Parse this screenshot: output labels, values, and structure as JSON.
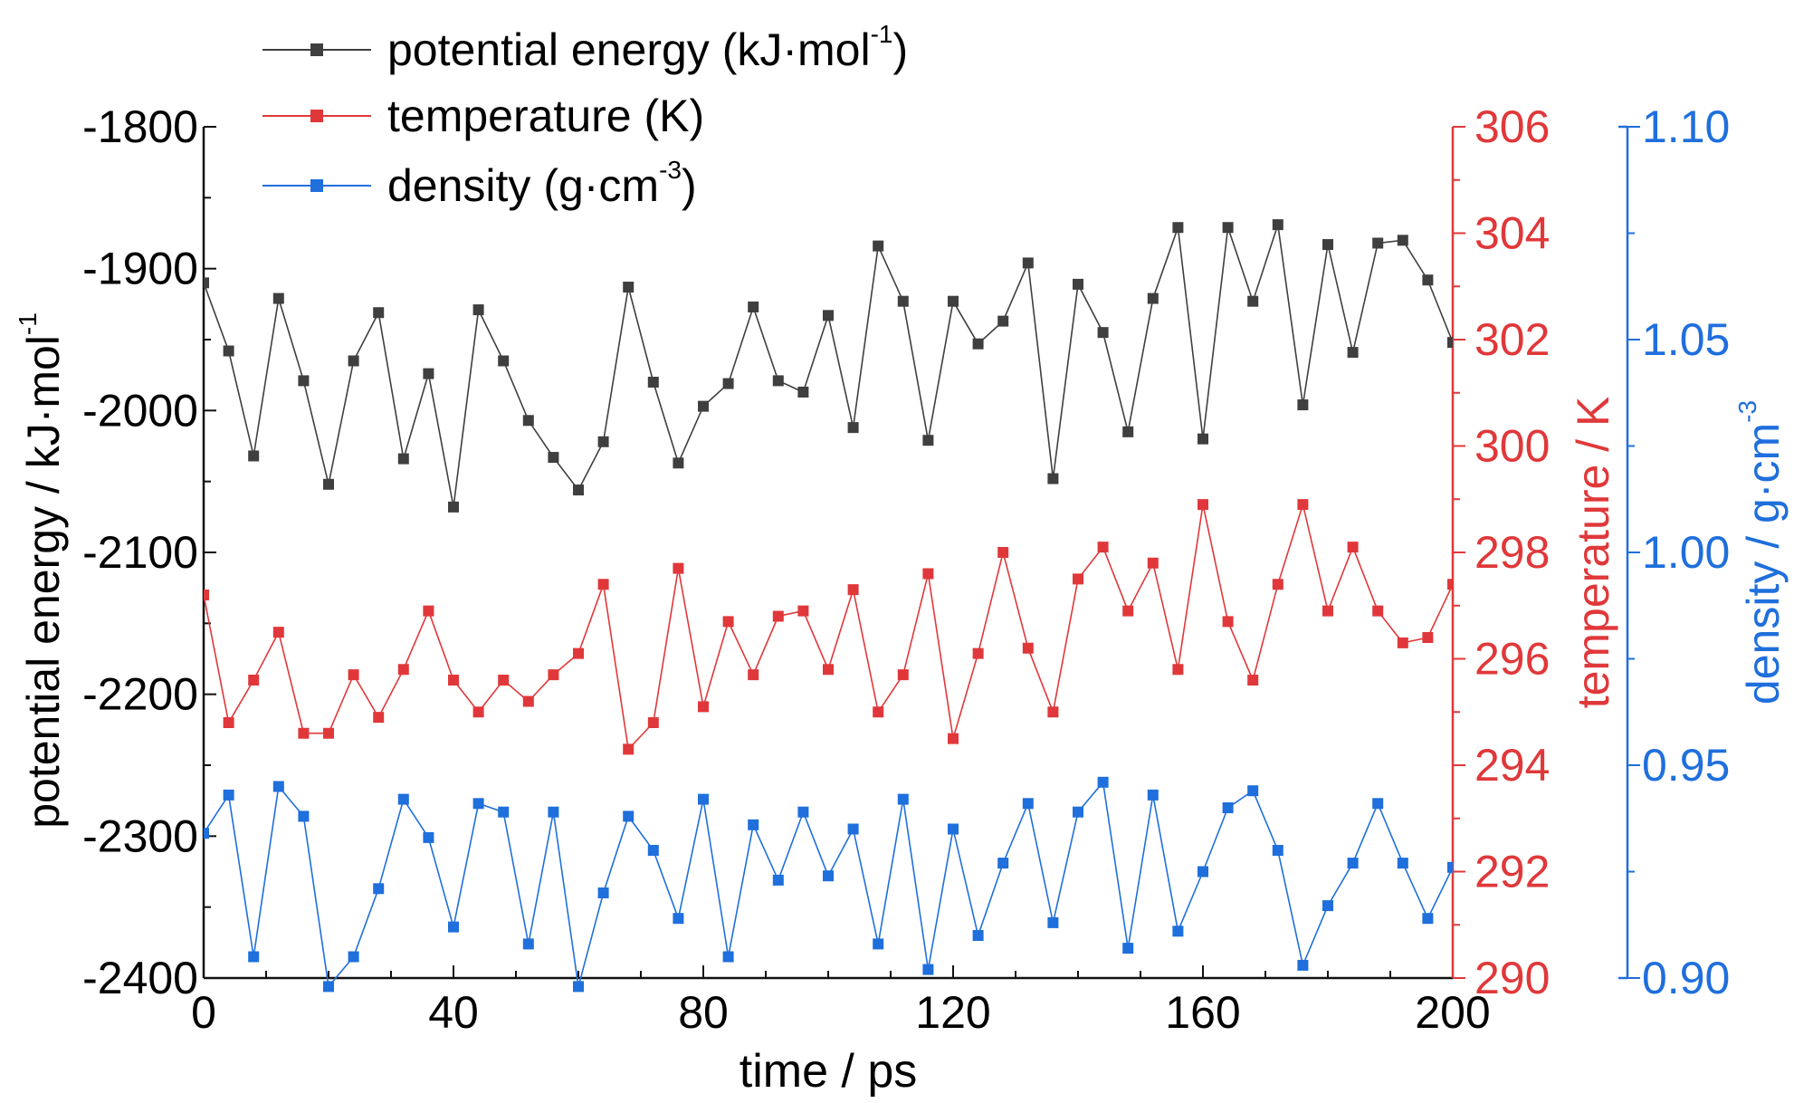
{
  "chart_data": {
    "type": "line",
    "xlabel": "time / ps",
    "xlim": [
      0,
      200
    ],
    "xticks": [
      0,
      40,
      80,
      120,
      160,
      200
    ],
    "x": [
      0,
      4,
      8,
      12,
      16,
      20,
      24,
      28,
      32,
      36,
      40,
      44,
      48,
      52,
      56,
      60,
      64,
      68,
      72,
      76,
      80,
      84,
      88,
      92,
      96,
      100,
      104,
      108,
      112,
      116,
      120,
      124,
      128,
      132,
      136,
      140,
      144,
      148,
      152,
      156,
      160,
      164,
      168,
      172,
      176,
      180,
      184,
      188,
      192,
      196,
      200
    ],
    "axes": {
      "left": {
        "label": "potential energy / kJ·mol",
        "label_sup": "-1",
        "ylim": [
          -2400,
          -1800
        ],
        "ticks": [
          "-1800",
          "-1900",
          "-2000",
          "-2100",
          "-2200",
          "-2300",
          "-2400"
        ],
        "color": "#000000"
      },
      "right1": {
        "label": "temperature / K",
        "ylim": [
          290,
          306
        ],
        "ticks": [
          "306",
          "304",
          "302",
          "300",
          "298",
          "296",
          "294",
          "292",
          "290"
        ],
        "color": "#e0383a"
      },
      "right2": {
        "label": "density / g·cm",
        "label_sup": "-3",
        "ylim": [
          0.9,
          1.1
        ],
        "ticks": [
          "1.10",
          "1.05",
          "1.00",
          "0.95",
          "0.90"
        ],
        "color": "#1f6fdc"
      }
    },
    "series": [
      {
        "name": "potential energy (kJ·mol",
        "name_sup": "-1",
        "name_end": ")",
        "axis": "left",
        "color": "#3f3f3f",
        "values": [
          -1910,
          -1958,
          -2032,
          -1921,
          -1979,
          -2052,
          -1965,
          -1931,
          -2034,
          -1974,
          -2068,
          -1929,
          -1965,
          -2007,
          -2033,
          -2056,
          -2022,
          -1913,
          -1980,
          -2037,
          -1997,
          -1981,
          -1927,
          -1979,
          -1987,
          -1933,
          -2012,
          -1884,
          -1923,
          -2021,
          -1923,
          -1953,
          -1937,
          -1896,
          -2048,
          -1911,
          -1945,
          -2015,
          -1921,
          -1871,
          -2020,
          -1871,
          -1923,
          -1869,
          -1996,
          -1883,
          -1959,
          -1882,
          -1880,
          -1908,
          -1952
        ]
      },
      {
        "name": "temperature (K)",
        "axis": "right1",
        "color": "#e0383a",
        "values": [
          297.2,
          294.8,
          295.6,
          296.5,
          294.6,
          294.6,
          295.7,
          294.9,
          295.8,
          296.9,
          295.6,
          295.0,
          295.6,
          295.2,
          295.7,
          296.1,
          297.4,
          294.3,
          294.8,
          297.7,
          295.1,
          296.7,
          295.7,
          296.8,
          296.9,
          295.8,
          297.3,
          295.0,
          295.7,
          297.6,
          294.5,
          296.1,
          298.0,
          296.2,
          295.0,
          297.5,
          298.1,
          296.9,
          297.8,
          295.8,
          298.9,
          296.7,
          295.6,
          297.4,
          298.9,
          296.9,
          298.1,
          296.9,
          296.3,
          296.4,
          297.4
        ]
      },
      {
        "name": "density (g·cm",
        "name_sup": "-3",
        "name_end": ")",
        "axis": "right2",
        "color": "#1f6fdc",
        "values": [
          0.934,
          0.943,
          0.905,
          0.945,
          0.938,
          0.898,
          0.905,
          0.921,
          0.942,
          0.933,
          0.912,
          0.941,
          0.939,
          0.908,
          0.939,
          0.898,
          0.92,
          0.938,
          0.93,
          0.914,
          0.942,
          0.905,
          0.936,
          0.923,
          0.939,
          0.924,
          0.935,
          0.908,
          0.942,
          0.902,
          0.935,
          0.91,
          0.927,
          0.941,
          0.913,
          0.939,
          0.946,
          0.907,
          0.943,
          0.911,
          0.925,
          0.94,
          0.944,
          0.93,
          0.903,
          0.917,
          0.927,
          0.941,
          0.927,
          0.914,
          0.926
        ]
      }
    ],
    "legend_position": "top-left",
    "grid": false
  }
}
